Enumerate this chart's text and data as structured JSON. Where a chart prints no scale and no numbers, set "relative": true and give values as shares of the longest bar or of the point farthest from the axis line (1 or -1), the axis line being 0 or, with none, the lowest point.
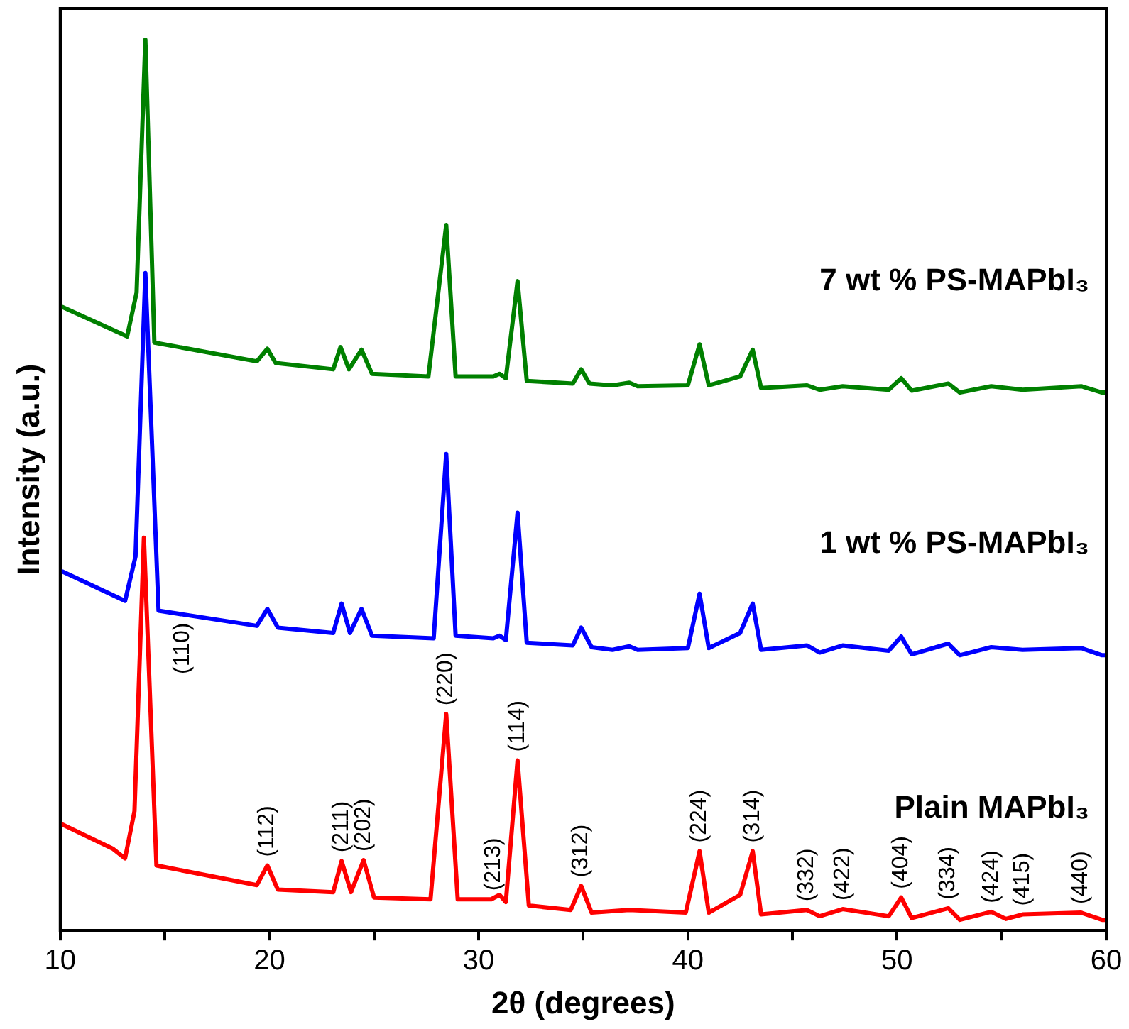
{
  "chart_data": {
    "type": "line",
    "xlabel": "2θ (degrees)",
    "ylabel": "Intensity (a.u.)",
    "relative": true,
    "legend": false,
    "grid": false,
    "marker": "none",
    "line_style": "solid",
    "xlim": [
      10,
      60
    ],
    "xticks": [
      10,
      {
        "value": 15,
        "label": null
      },
      20,
      {
        "value": 25,
        "label": null
      },
      30,
      {
        "value": 35,
        "label": null
      },
      40,
      {
        "value": 45,
        "label": null
      },
      50,
      {
        "value": 55,
        "label": null
      },
      60
    ],
    "series": [
      {
        "name": "7 wt % PS-MAPbI₃",
        "color": "#008000",
        "x": [
          10.1,
          13.2,
          13.65,
          14.07,
          14.5,
          19.4,
          19.9,
          20.3,
          23.05,
          23.4,
          23.8,
          24.4,
          24.9,
          27.6,
          28.45,
          28.9,
          30.7,
          31.0,
          31.3,
          31.86,
          32.3,
          34.5,
          34.9,
          35.3,
          36.4,
          37.2,
          37.6,
          40.0,
          40.56,
          41.0,
          42.5,
          43.1,
          43.5,
          45.7,
          46.3,
          47.4,
          49.6,
          50.2,
          50.7,
          52.45,
          53.0,
          54.5,
          56.0,
          58.8,
          59.8,
          60
        ],
        "values": [
          0.7,
          0.667,
          0.716,
          1.0,
          0.66,
          0.639,
          0.653,
          0.637,
          0.63,
          0.655,
          0.63,
          0.652,
          0.625,
          0.622,
          0.792,
          0.622,
          0.622,
          0.625,
          0.62,
          0.729,
          0.617,
          0.614,
          0.63,
          0.614,
          0.612,
          0.615,
          0.611,
          0.612,
          0.658,
          0.612,
          0.622,
          0.652,
          0.609,
          0.612,
          0.607,
          0.611,
          0.607,
          0.62,
          0.606,
          0.614,
          0.604,
          0.611,
          0.607,
          0.611,
          0.604,
          0.604
        ]
      },
      {
        "name": "1 wt % PS-MAPbI₃",
        "color": "#0000ff",
        "x": [
          10.1,
          13.1,
          13.6,
          14.07,
          14.7,
          19.4,
          19.9,
          20.4,
          23.05,
          23.45,
          23.85,
          24.4,
          24.9,
          27.85,
          28.45,
          28.9,
          30.7,
          31.0,
          31.3,
          31.86,
          32.3,
          34.5,
          34.9,
          35.4,
          36.4,
          37.2,
          37.6,
          40.0,
          40.56,
          41.0,
          42.5,
          43.1,
          43.5,
          45.7,
          46.3,
          47.4,
          49.6,
          50.2,
          50.7,
          52.45,
          53.0,
          54.5,
          56.0,
          58.8,
          59.8,
          60
        ],
        "values": [
          0.403,
          0.37,
          0.42,
          0.738,
          0.359,
          0.342,
          0.361,
          0.34,
          0.334,
          0.367,
          0.334,
          0.361,
          0.331,
          0.328,
          0.535,
          0.331,
          0.328,
          0.331,
          0.326,
          0.469,
          0.323,
          0.32,
          0.34,
          0.318,
          0.315,
          0.319,
          0.315,
          0.317,
          0.378,
          0.317,
          0.334,
          0.367,
          0.315,
          0.32,
          0.312,
          0.32,
          0.314,
          0.33,
          0.31,
          0.322,
          0.309,
          0.318,
          0.315,
          0.317,
          0.309,
          0.309
        ]
      },
      {
        "name": "Plain MAPbI₃",
        "color": "#ff0000",
        "x": [
          10.1,
          12.5,
          13.1,
          13.55,
          14.0,
          14.6,
          19.4,
          19.9,
          20.4,
          23.05,
          23.45,
          23.9,
          24.5,
          25.0,
          27.7,
          28.45,
          29.0,
          30.6,
          31.0,
          31.3,
          31.86,
          32.4,
          34.4,
          34.9,
          35.4,
          37.2,
          39.9,
          40.56,
          41.0,
          42.5,
          43.1,
          43.5,
          45.7,
          46.3,
          47.4,
          49.6,
          50.2,
          50.7,
          52.45,
          53.0,
          54.5,
          55.2,
          56.0,
          58.8,
          59.8,
          60
        ],
        "values": [
          0.119,
          0.092,
          0.081,
          0.134,
          0.441,
          0.073,
          0.051,
          0.073,
          0.046,
          0.043,
          0.078,
          0.043,
          0.079,
          0.037,
          0.035,
          0.243,
          0.035,
          0.035,
          0.04,
          0.032,
          0.191,
          0.028,
          0.023,
          0.05,
          0.02,
          0.023,
          0.02,
          0.089,
          0.02,
          0.04,
          0.089,
          0.018,
          0.023,
          0.016,
          0.024,
          0.016,
          0.037,
          0.014,
          0.025,
          0.012,
          0.021,
          0.013,
          0.018,
          0.02,
          0.012,
          0.012
        ]
      }
    ],
    "annotations": [
      {
        "text": "(110)",
        "x": 15.84,
        "y": 0.355
      },
      {
        "text": "(112)",
        "x": 19.9,
        "y": 0.073
      },
      {
        "text": "(211)",
        "x": 23.45,
        "y": 0.078
      },
      {
        "text": "(202)",
        "x": 24.5,
        "y": 0.079
      },
      {
        "text": "(220)",
        "x": 28.45,
        "y": 0.243
      },
      {
        "text": "(213)",
        "x": 30.7,
        "y": 0.035
      },
      {
        "text": "(114)",
        "x": 31.86,
        "y": 0.191
      },
      {
        "text": "(312)",
        "x": 34.9,
        "y": 0.05
      },
      {
        "text": "(224)",
        "x": 40.56,
        "y": 0.089
      },
      {
        "text": "(314)",
        "x": 43.1,
        "y": 0.089
      },
      {
        "text": "(332)",
        "x": 45.7,
        "y": 0.023
      },
      {
        "text": "(422)",
        "x": 47.4,
        "y": 0.024
      },
      {
        "text": "(404)",
        "x": 50.2,
        "y": 0.037
      },
      {
        "text": "(334)",
        "x": 52.45,
        "y": 0.025
      },
      {
        "text": "(424)",
        "x": 54.5,
        "y": 0.021
      },
      {
        "text": "(415)",
        "x": 56.0,
        "y": 0.018
      },
      {
        "text": "(440)",
        "x": 58.8,
        "y": 0.02
      }
    ]
  }
}
